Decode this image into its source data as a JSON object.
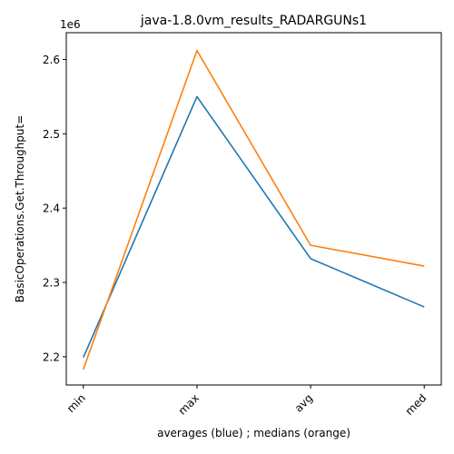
{
  "chart_data": {
    "type": "line",
    "title": "java-1.8.0vm_results_RADARGUNs1",
    "xlabel": "averages (blue) ; medians (orange)",
    "ylabel": "BasicOperations.Get.Throughput=",
    "offset_label": "1e6",
    "categories": [
      "min",
      "max",
      "avg",
      "med"
    ],
    "y_ticks": [
      2.2,
      2.3,
      2.4,
      2.5,
      2.6
    ],
    "y_tick_labels": [
      "2.2",
      "2.3",
      "2.4",
      "2.5",
      "2.6"
    ],
    "ylim": [
      2.162,
      2.636
    ],
    "series": [
      {
        "values": [
          2.199,
          2.55,
          2.332,
          2.267
        ],
        "color": "#1f77b4"
      },
      {
        "values": [
          2.183,
          2.612,
          2.35,
          2.322
        ],
        "color": "#ff7f0e"
      }
    ],
    "grid": false,
    "legend": "none"
  }
}
